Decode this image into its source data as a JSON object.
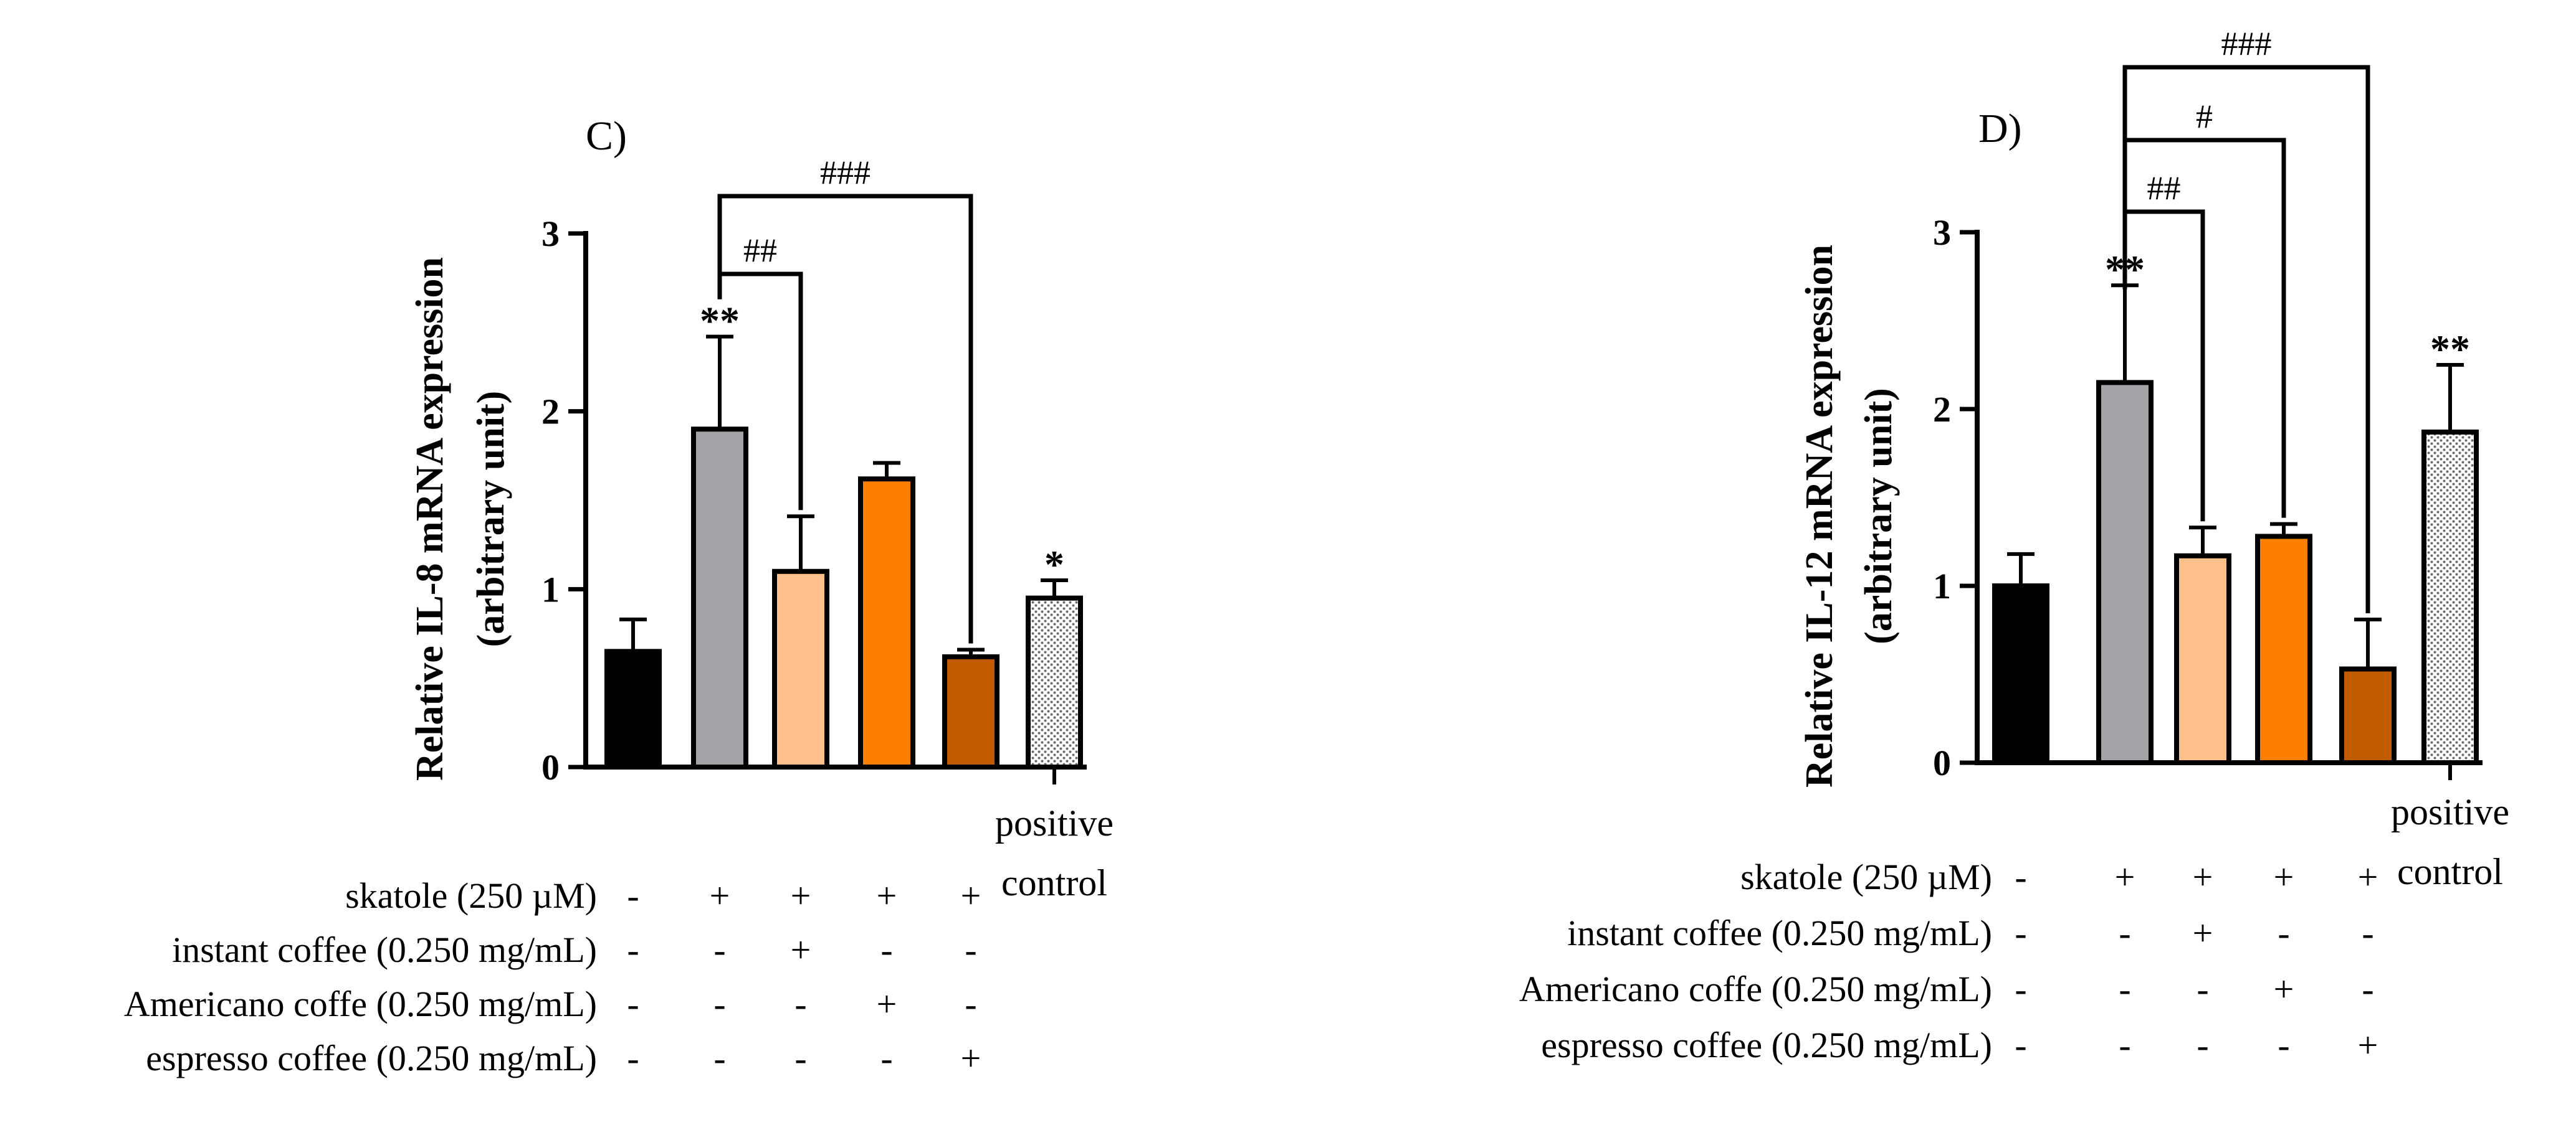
{
  "chart_data": [
    {
      "type": "bar",
      "panel_label": "C)",
      "ylabel_line1": "Relative IL-8 mRNA expression",
      "ylabel_line2": "(arbitrary unit)",
      "ylim": [
        0,
        3
      ],
      "yticks": [
        "0",
        "1",
        "2",
        "3"
      ],
      "values": [
        0.65,
        1.9,
        1.1,
        1.62,
        0.62,
        0.95
      ],
      "errors": [
        0.18,
        0.52,
        0.31,
        0.09,
        0.04,
        0.1
      ],
      "significance": [
        "",
        "**",
        "",
        "",
        "",
        "*"
      ],
      "brackets": [
        {
          "from": 1,
          "to": 2,
          "label": "##"
        },
        {
          "from": 1,
          "to": 4,
          "label": "###"
        }
      ],
      "positive_control_label": [
        "positive",
        "control"
      ],
      "condition_rows": [
        {
          "label": "skatole (250 µM)",
          "signs": [
            "-",
            "+",
            "+",
            "+",
            "+"
          ]
        },
        {
          "label": "instant coffee (0.250 mg/mL)",
          "signs": [
            "-",
            "-",
            "+",
            "-",
            "-"
          ]
        },
        {
          "label": "Americano coffe (0.250 mg/mL)",
          "signs": [
            "-",
            "-",
            "-",
            "+",
            "-"
          ]
        },
        {
          "label": "espresso coffee (0.250 mg/mL)",
          "signs": [
            "-",
            "-",
            "-",
            "-",
            "+"
          ]
        }
      ]
    },
    {
      "type": "bar",
      "panel_label": "D)",
      "ylabel_line1": "Relative IL-12 mRNA expression",
      "ylabel_line2": "(arbitrary unit)",
      "ylim": [
        0,
        3
      ],
      "yticks": [
        "0",
        "1",
        "2",
        "3"
      ],
      "values": [
        1.0,
        2.15,
        1.17,
        1.28,
        0.53,
        1.87
      ],
      "errors": [
        0.18,
        0.55,
        0.16,
        0.07,
        0.28,
        0.38
      ],
      "significance": [
        "",
        "**",
        "",
        "",
        "",
        "**"
      ],
      "brackets": [
        {
          "from": 1,
          "to": 2,
          "label": "##"
        },
        {
          "from": 1,
          "to": 3,
          "label": "#"
        },
        {
          "from": 1,
          "to": 4,
          "label": "###"
        }
      ],
      "positive_control_label": [
        "positive",
        "control"
      ],
      "condition_rows": [
        {
          "label": "skatole (250 µM)",
          "signs": [
            "-",
            "+",
            "+",
            "+",
            "+"
          ]
        },
        {
          "label": "instant coffee (0.250 mg/mL)",
          "signs": [
            "-",
            "-",
            "+",
            "-",
            "-"
          ]
        },
        {
          "label": "Americano coffe (0.250 mg/mL)",
          "signs": [
            "-",
            "-",
            "-",
            "+",
            "-"
          ]
        },
        {
          "label": "espresso coffee (0.250 mg/mL)",
          "signs": [
            "-",
            "-",
            "-",
            "-",
            "+"
          ]
        }
      ]
    }
  ],
  "colors": {
    "control": "#000000",
    "skatole": "#a3a3a8",
    "instant": "#fdc08a",
    "americano": "#fd7f00",
    "espresso": "#c25a00",
    "positive": "#d9d9d9",
    "stroke": "#000000"
  }
}
